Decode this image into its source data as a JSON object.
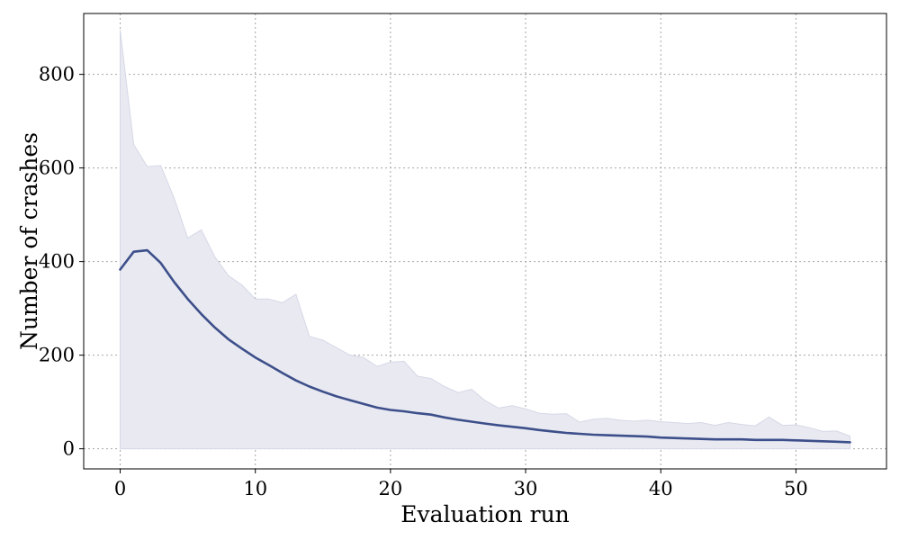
{
  "chart_data": {
    "type": "line",
    "title": "",
    "xlabel": "Evaluation run",
    "ylabel": "Number of crashes",
    "xlim": [
      -2.7,
      56.7
    ],
    "ylim": [
      -43,
      930
    ],
    "xticks": [
      0,
      10,
      20,
      30,
      40,
      50
    ],
    "yticks": [
      0,
      200,
      400,
      600,
      800
    ],
    "grid": true,
    "colors": {
      "line": "#3d4f8a",
      "band": "#e8e9f1",
      "band_edge": "#d5d8e6"
    },
    "x": [
      0,
      1,
      2,
      3,
      4,
      5,
      6,
      7,
      8,
      9,
      10,
      11,
      12,
      13,
      14,
      15,
      16,
      17,
      18,
      19,
      20,
      21,
      22,
      23,
      24,
      25,
      26,
      27,
      28,
      29,
      30,
      31,
      32,
      33,
      34,
      35,
      36,
      37,
      38,
      39,
      40,
      41,
      42,
      43,
      44,
      45,
      46,
      47,
      48,
      49,
      50,
      51,
      52,
      53,
      54
    ],
    "series": [
      {
        "type": "line",
        "values": [
          383,
          421,
          424,
          397,
          356,
          320,
          288,
          259,
          234,
          214,
          195,
          179,
          162,
          146,
          133,
          122,
          112,
          104,
          96,
          88,
          83,
          80,
          76,
          73,
          67,
          62,
          58,
          54,
          50,
          47,
          44,
          40,
          37,
          34,
          32,
          30,
          29,
          28,
          27,
          26,
          24,
          23,
          22,
          21,
          20,
          20,
          20,
          19,
          19,
          19,
          18,
          17,
          16,
          15,
          14
        ]
      },
      {
        "type": "band",
        "upper": [
          895,
          650,
          603,
          605,
          535,
          450,
          468,
          410,
          370,
          350,
          320,
          320,
          312,
          330,
          240,
          232,
          216,
          200,
          195,
          176,
          185,
          187,
          155,
          150,
          133,
          120,
          127,
          103,
          87,
          92,
          85,
          76,
          74,
          75,
          57,
          63,
          65,
          61,
          59,
          61,
          58,
          56,
          54,
          56,
          50,
          56,
          52,
          49,
          68,
          50,
          51,
          45,
          37,
          38,
          27
        ],
        "lower": [
          0,
          0,
          0,
          0,
          0,
          0,
          0,
          0,
          0,
          0,
          0,
          0,
          0,
          0,
          0,
          0,
          0,
          0,
          0,
          0,
          0,
          0,
          0,
          0,
          0,
          0,
          0,
          0,
          0,
          0,
          0,
          0,
          0,
          0,
          0,
          0,
          0,
          0,
          0,
          0,
          0,
          0,
          0,
          0,
          0,
          0,
          0,
          0,
          0,
          0,
          0,
          0,
          0,
          0,
          0
        ]
      }
    ]
  }
}
